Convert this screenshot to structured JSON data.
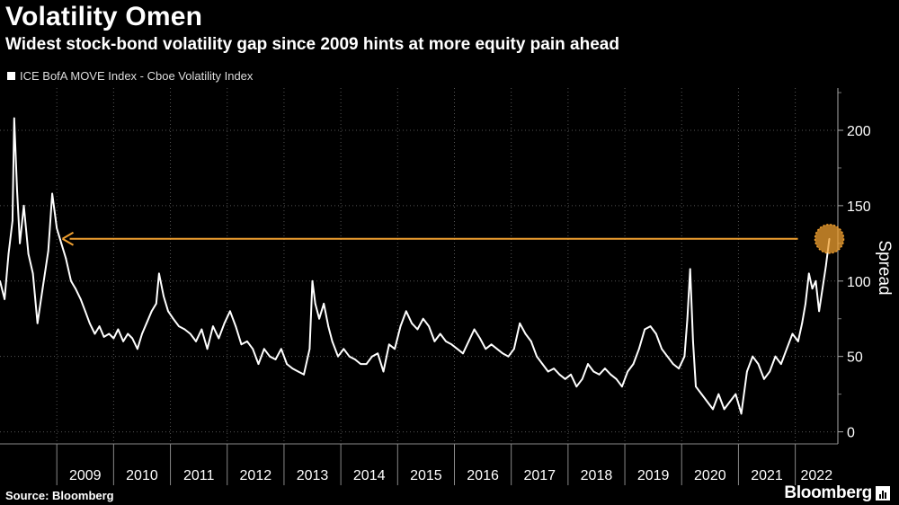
{
  "title": "Volatility Omen",
  "subtitle": "Widest stock-bond volatility gap since 2009 hints at more equity pain ahead",
  "legend_label": "ICE BofA MOVE Index - Cboe Volatility Index",
  "source": "Source: Bloomberg",
  "brand": "Bloomberg",
  "colors": {
    "background": "#000000",
    "line": "#ffffff",
    "annotation": "#f0a030",
    "grid": "#555555"
  },
  "chart_data": {
    "type": "line",
    "title": "Volatility Omen",
    "subtitle": "Widest stock-bond volatility gap since 2009 hints at more equity pain ahead",
    "ylabel": "Spread",
    "xlabel": "",
    "ylim": [
      -8,
      228
    ],
    "xlim": [
      2008.0,
      2022.75
    ],
    "yticks": [
      0,
      50,
      100,
      150,
      200
    ],
    "ytick_labels": [
      "0",
      "50",
      "100",
      "150",
      "200"
    ],
    "xticks": [
      "2009",
      "2010",
      "2011",
      "2012",
      "2013",
      "2014",
      "2015",
      "2016",
      "2017",
      "2018",
      "2019",
      "2020",
      "2021",
      "2022"
    ],
    "grid": true,
    "legend_position": "top-left",
    "series": [
      {
        "name": "ICE BofA MOVE Index - Cboe Volatility Index",
        "points": [
          [
            2008.0,
            100
          ],
          [
            2008.08,
            88
          ],
          [
            2008.15,
            118
          ],
          [
            2008.22,
            140
          ],
          [
            2008.25,
            208
          ],
          [
            2008.3,
            160
          ],
          [
            2008.35,
            125
          ],
          [
            2008.42,
            150
          ],
          [
            2008.5,
            118
          ],
          [
            2008.58,
            105
          ],
          [
            2008.66,
            72
          ],
          [
            2008.75,
            95
          ],
          [
            2008.85,
            120
          ],
          [
            2008.92,
            158
          ],
          [
            2009.0,
            135
          ],
          [
            2009.08,
            125
          ],
          [
            2009.16,
            115
          ],
          [
            2009.25,
            100
          ],
          [
            2009.33,
            95
          ],
          [
            2009.42,
            88
          ],
          [
            2009.5,
            80
          ],
          [
            2009.58,
            72
          ],
          [
            2009.67,
            65
          ],
          [
            2009.75,
            70
          ],
          [
            2009.83,
            63
          ],
          [
            2009.92,
            65
          ],
          [
            2010.0,
            62
          ],
          [
            2010.08,
            68
          ],
          [
            2010.17,
            60
          ],
          [
            2010.25,
            65
          ],
          [
            2010.33,
            62
          ],
          [
            2010.42,
            55
          ],
          [
            2010.5,
            65
          ],
          [
            2010.58,
            72
          ],
          [
            2010.67,
            80
          ],
          [
            2010.75,
            85
          ],
          [
            2010.8,
            105
          ],
          [
            2010.88,
            90
          ],
          [
            2010.96,
            80
          ],
          [
            2011.05,
            75
          ],
          [
            2011.15,
            70
          ],
          [
            2011.25,
            68
          ],
          [
            2011.35,
            65
          ],
          [
            2011.45,
            60
          ],
          [
            2011.55,
            68
          ],
          [
            2011.65,
            55
          ],
          [
            2011.75,
            70
          ],
          [
            2011.85,
            62
          ],
          [
            2011.95,
            72
          ],
          [
            2012.05,
            80
          ],
          [
            2012.15,
            70
          ],
          [
            2012.25,
            58
          ],
          [
            2012.35,
            60
          ],
          [
            2012.45,
            55
          ],
          [
            2012.55,
            45
          ],
          [
            2012.65,
            55
          ],
          [
            2012.75,
            50
          ],
          [
            2012.85,
            48
          ],
          [
            2012.95,
            55
          ],
          [
            2013.05,
            45
          ],
          [
            2013.15,
            42
          ],
          [
            2013.25,
            40
          ],
          [
            2013.35,
            38
          ],
          [
            2013.45,
            55
          ],
          [
            2013.5,
            100
          ],
          [
            2013.55,
            85
          ],
          [
            2013.62,
            75
          ],
          [
            2013.7,
            85
          ],
          [
            2013.78,
            70
          ],
          [
            2013.85,
            60
          ],
          [
            2013.95,
            50
          ],
          [
            2014.05,
            55
          ],
          [
            2014.15,
            50
          ],
          [
            2014.25,
            48
          ],
          [
            2014.35,
            45
          ],
          [
            2014.45,
            45
          ],
          [
            2014.55,
            50
          ],
          [
            2014.65,
            52
          ],
          [
            2014.75,
            40
          ],
          [
            2014.85,
            58
          ],
          [
            2014.95,
            55
          ],
          [
            2015.05,
            70
          ],
          [
            2015.15,
            80
          ],
          [
            2015.25,
            72
          ],
          [
            2015.35,
            68
          ],
          [
            2015.45,
            75
          ],
          [
            2015.55,
            70
          ],
          [
            2015.65,
            60
          ],
          [
            2015.75,
            65
          ],
          [
            2015.85,
            60
          ],
          [
            2015.95,
            58
          ],
          [
            2016.05,
            55
          ],
          [
            2016.15,
            52
          ],
          [
            2016.25,
            60
          ],
          [
            2016.35,
            68
          ],
          [
            2016.45,
            62
          ],
          [
            2016.55,
            55
          ],
          [
            2016.65,
            58
          ],
          [
            2016.75,
            55
          ],
          [
            2016.85,
            52
          ],
          [
            2016.95,
            50
          ],
          [
            2017.05,
            55
          ],
          [
            2017.15,
            72
          ],
          [
            2017.25,
            65
          ],
          [
            2017.35,
            60
          ],
          [
            2017.45,
            50
          ],
          [
            2017.55,
            45
          ],
          [
            2017.65,
            40
          ],
          [
            2017.75,
            42
          ],
          [
            2017.85,
            38
          ],
          [
            2017.95,
            35
          ],
          [
            2018.05,
            38
          ],
          [
            2018.15,
            30
          ],
          [
            2018.25,
            35
          ],
          [
            2018.35,
            45
          ],
          [
            2018.45,
            40
          ],
          [
            2018.55,
            38
          ],
          [
            2018.65,
            42
          ],
          [
            2018.75,
            38
          ],
          [
            2018.85,
            35
          ],
          [
            2018.95,
            30
          ],
          [
            2019.05,
            40
          ],
          [
            2019.15,
            45
          ],
          [
            2019.25,
            55
          ],
          [
            2019.35,
            68
          ],
          [
            2019.45,
            70
          ],
          [
            2019.55,
            65
          ],
          [
            2019.65,
            55
          ],
          [
            2019.75,
            50
          ],
          [
            2019.85,
            45
          ],
          [
            2019.95,
            42
          ],
          [
            2020.05,
            50
          ],
          [
            2020.1,
            75
          ],
          [
            2020.15,
            108
          ],
          [
            2020.2,
            60
          ],
          [
            2020.25,
            30
          ],
          [
            2020.35,
            25
          ],
          [
            2020.45,
            20
          ],
          [
            2020.55,
            15
          ],
          [
            2020.65,
            25
          ],
          [
            2020.75,
            15
          ],
          [
            2020.85,
            20
          ],
          [
            2020.95,
            25
          ],
          [
            2021.05,
            12
          ],
          [
            2021.15,
            40
          ],
          [
            2021.25,
            50
          ],
          [
            2021.35,
            45
          ],
          [
            2021.45,
            35
          ],
          [
            2021.55,
            40
          ],
          [
            2021.65,
            50
          ],
          [
            2021.75,
            45
          ],
          [
            2021.85,
            55
          ],
          [
            2021.95,
            65
          ],
          [
            2022.05,
            60
          ],
          [
            2022.12,
            72
          ],
          [
            2022.18,
            85
          ],
          [
            2022.24,
            105
          ],
          [
            2022.3,
            95
          ],
          [
            2022.36,
            100
          ],
          [
            2022.42,
            80
          ],
          [
            2022.48,
            95
          ],
          [
            2022.54,
            110
          ],
          [
            2022.6,
            128
          ]
        ]
      }
    ],
    "annotations": [
      {
        "type": "arrow",
        "from": [
          2022.6,
          128
        ],
        "to": [
          2009.1,
          128
        ]
      },
      {
        "type": "circle",
        "at": [
          2022.6,
          128
        ]
      }
    ]
  }
}
